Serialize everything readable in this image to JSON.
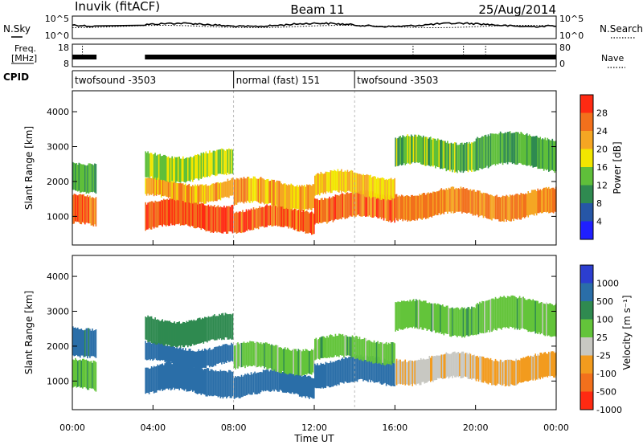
{
  "header": {
    "station": "Inuvik (fitACF)",
    "beam": "Beam 11",
    "date": "25/Aug/2014"
  },
  "noise_panel": {
    "left_label": "N.Sky",
    "left_ticks": [
      "10^5",
      "10^0"
    ],
    "right_label": "N.Search",
    "right_ticks": [
      "10^5",
      "10^0"
    ]
  },
  "freq_panel": {
    "left_label_1": "Freq.",
    "left_label_2": "[MHz]",
    "left_ticks": [
      "18",
      "8"
    ],
    "right_label": "Nave",
    "right_ticks": [
      "80",
      "0"
    ]
  },
  "cpid": {
    "label": "CPID",
    "segments": [
      {
        "start_h": 0,
        "end_h": 8,
        "text": "twofsound -3503"
      },
      {
        "start_h": 8,
        "end_h": 14,
        "text": "normal (fast) 151"
      },
      {
        "start_h": 14,
        "end_h": 24,
        "text": "twofsound -3503"
      }
    ]
  },
  "power_panel": {
    "ylabel": "Slant Range [km]",
    "yticks": [
      "1000",
      "2000",
      "3000",
      "4000"
    ],
    "colorbar_label": "Power [dB]",
    "colorbar_ticks": [
      "4",
      "8",
      "12",
      "16",
      "20",
      "24",
      "28"
    ],
    "colors": [
      "#1f1fff",
      "#2656a6",
      "#2f8a50",
      "#5fbf3a",
      "#f2e600",
      "#f5a623",
      "#f2701c",
      "#ff2a12"
    ]
  },
  "velocity_panel": {
    "ylabel": "Slant Range [km]",
    "yticks": [
      "1000",
      "2000",
      "3000",
      "4000"
    ],
    "colorbar_label": "Velocity [m s⁻¹]",
    "colorbar_ticks": [
      "1000",
      "500",
      "100",
      "25",
      "-25",
      "-100",
      "-500",
      "-1000"
    ],
    "colors": [
      "#2c3ed0",
      "#2a6ea8",
      "#2f8a50",
      "#63c43a",
      "#c8c8c2",
      "#f29b1e",
      "#f2701c",
      "#ff2a12"
    ]
  },
  "xaxis": {
    "label": "Time UT",
    "ticks": [
      "00:00",
      "04:00",
      "08:00",
      "12:00",
      "16:00",
      "20:00",
      "00:00"
    ]
  },
  "chart_data": {
    "type": "heatmap",
    "title": "Inuvik (fitACF)  Beam 11  25/Aug/2014",
    "xlabel": "Time UT",
    "ylabel": "Slant Range [km]",
    "xlim_hours": [
      0,
      24
    ],
    "ylim_km": [
      180,
      4600
    ],
    "data_gaps_hours": [
      [
        1.2,
        3.6
      ]
    ],
    "power_dB_range": [
      0,
      32
    ],
    "velocity_range_ms": [
      -1000,
      1000
    ],
    "scatter_regions": [
      {
        "t_start": 0.0,
        "t_end": 1.2,
        "range_min_km": 700,
        "range_max_km": 1500,
        "power_dB": 26,
        "velocity_ms": 10
      },
      {
        "t_start": 0.0,
        "t_end": 1.2,
        "range_min_km": 1800,
        "range_max_km": 2600,
        "power_dB": 12,
        "velocity_ms": 120
      },
      {
        "t_start": 3.6,
        "t_end": 8.0,
        "range_min_km": 650,
        "range_max_km": 1400,
        "power_dB": 28,
        "velocity_ms": 300
      },
      {
        "t_start": 3.6,
        "t_end": 8.0,
        "range_min_km": 1500,
        "range_max_km": 2000,
        "power_dB": 22,
        "velocity_ms": 150
      },
      {
        "t_start": 3.6,
        "t_end": 8.0,
        "range_min_km": 2100,
        "range_max_km": 2800,
        "power_dB": 16,
        "velocity_ms": 60
      },
      {
        "t_start": 8.0,
        "t_end": 12.0,
        "range_min_km": 600,
        "range_max_km": 1200,
        "power_dB": 27,
        "velocity_ms": 250
      },
      {
        "t_start": 8.0,
        "t_end": 12.0,
        "range_min_km": 1300,
        "range_max_km": 2000,
        "power_dB": 22,
        "velocity_ms": 0
      },
      {
        "t_start": 12.0,
        "t_end": 16.0,
        "range_min_km": 900,
        "range_max_km": 1600,
        "power_dB": 26,
        "velocity_ms": 200
      },
      {
        "t_start": 12.0,
        "t_end": 16.0,
        "range_min_km": 1600,
        "range_max_km": 2200,
        "power_dB": 20,
        "velocity_ms": 0
      },
      {
        "t_start": 16.0,
        "t_end": 20.0,
        "range_min_km": 1000,
        "range_max_km": 1700,
        "power_dB": 24,
        "velocity_ms": -80
      },
      {
        "t_start": 16.0,
        "t_end": 20.0,
        "range_min_km": 2400,
        "range_max_km": 3200,
        "power_dB": 14,
        "velocity_ms": 0
      },
      {
        "t_start": 20.0,
        "t_end": 24.0,
        "range_min_km": 1000,
        "range_max_km": 1700,
        "power_dB": 24,
        "velocity_ms": -120
      },
      {
        "t_start": 20.0,
        "t_end": 24.0,
        "range_min_km": 2400,
        "range_max_km": 3300,
        "power_dB": 12,
        "velocity_ms": 0
      }
    ]
  }
}
